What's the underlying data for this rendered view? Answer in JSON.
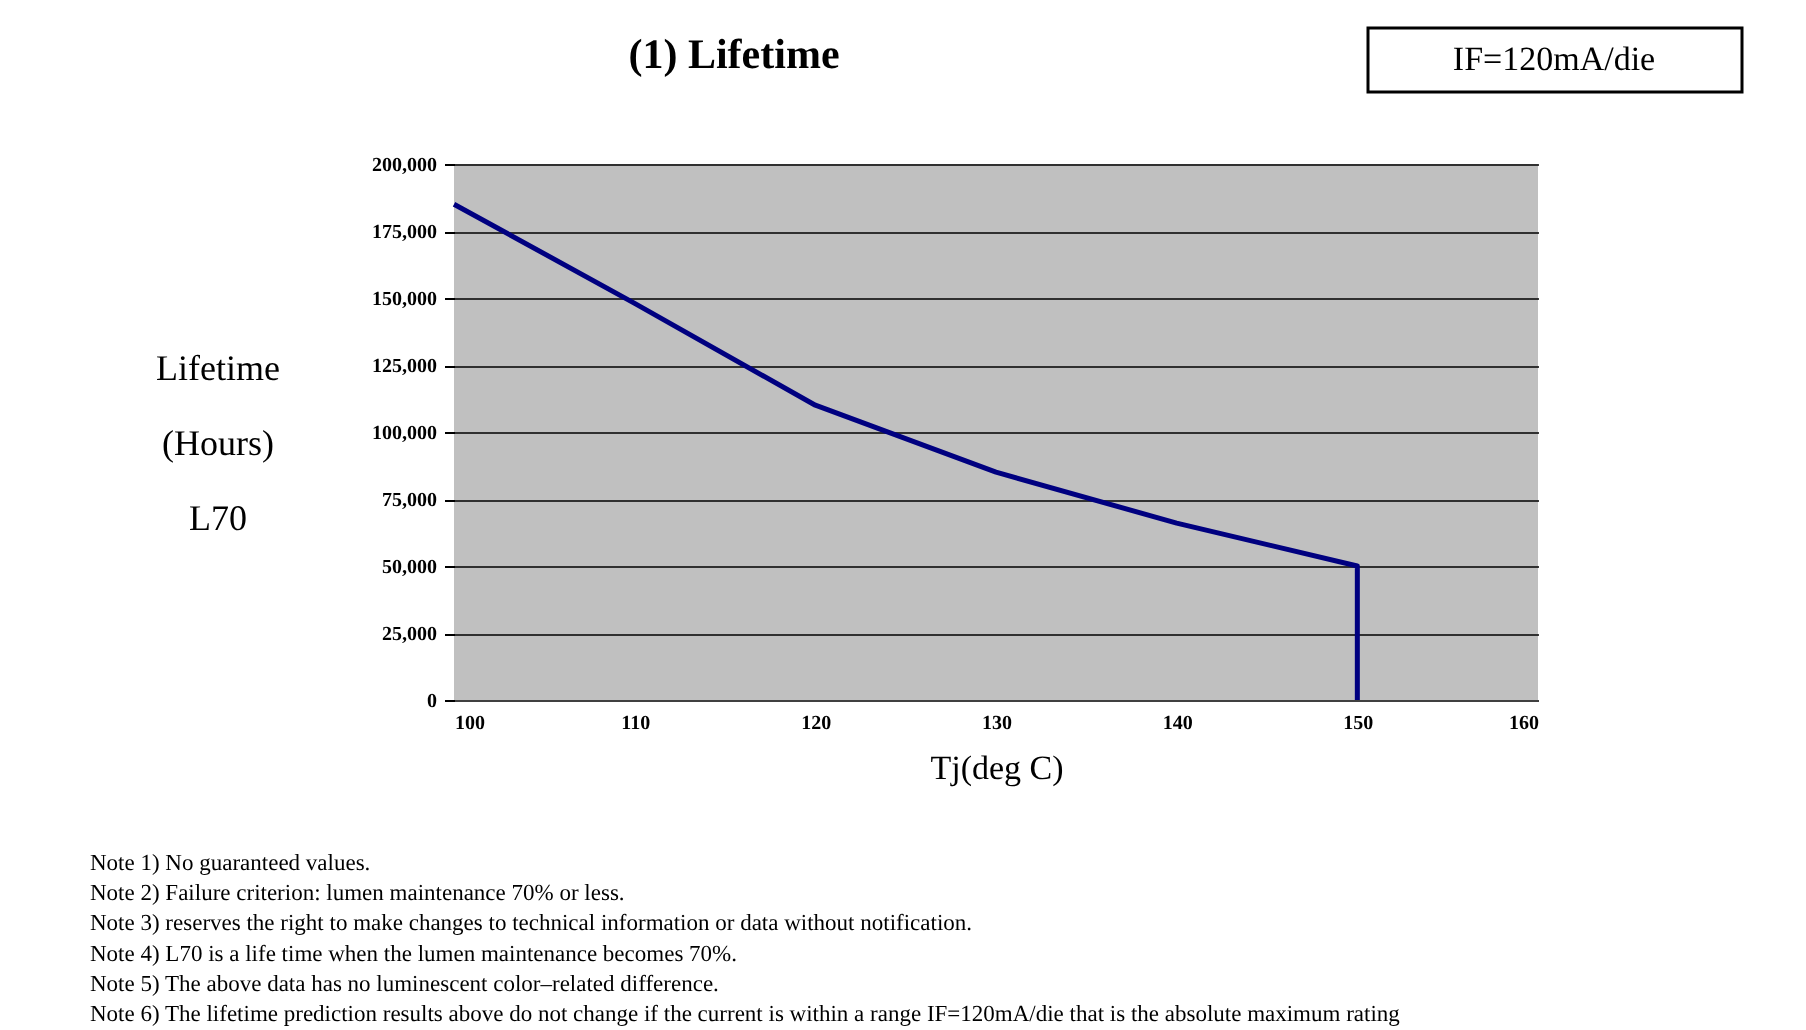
{
  "chart_data": {
    "type": "line",
    "title": "(1) Lifetime",
    "xlabel": "Tj(deg C)",
    "ylabel": "Lifetime\n(Hours)\nL70",
    "x": [
      100,
      110,
      120,
      130,
      140,
      150,
      150
    ],
    "series": [
      {
        "color": "#000080",
        "values": [
          185000,
          148000,
          110000,
          85000,
          66000,
          50000,
          0
        ]
      }
    ],
    "xlim": [
      100,
      160
    ],
    "xticks": [
      100,
      110,
      120,
      130,
      140,
      150,
      160
    ],
    "ylim": [
      0,
      200000
    ],
    "yticks": [
      {
        "value": 0,
        "label": "0"
      },
      {
        "value": 25000,
        "label": "25,000"
      },
      {
        "value": 50000,
        "label": "50,000"
      },
      {
        "value": 75000,
        "label": "75,000"
      },
      {
        "value": 100000,
        "label": "100,000"
      },
      {
        "value": 125000,
        "label": "125,000"
      },
      {
        "value": 150000,
        "label": "150,000"
      },
      {
        "value": 175000,
        "label": "175,000"
      },
      {
        "value": 200000,
        "label": "200,000"
      }
    ],
    "grid": "y",
    "marker": "none",
    "line_style": "solid",
    "annotations": [
      "IF=120mA/die",
      "Note 1) No guaranteed values.",
      "Note 2) Failure criterion: lumen maintenance 70% or less.",
      "Note 3) reserves the right to make changes to technical information or data without notification.",
      "Note 4) L70 is a life time when the lumen maintenance becomes 70%.",
      "Note 5) The above data has no luminescent color–related difference.",
      "Note 6) The lifetime prediction results above do not change if the current is within a range IF=120mA/die that is the absolute maximum rating"
    ]
  }
}
